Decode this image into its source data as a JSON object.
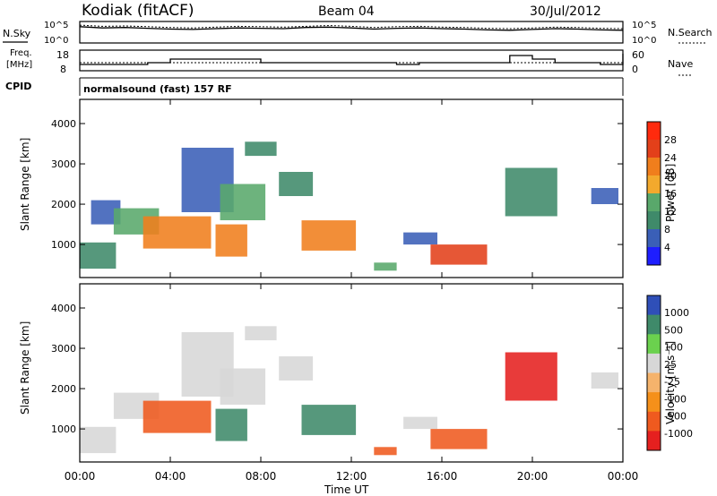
{
  "chart_data": [
    {
      "type": "header",
      "title": "Kodiak (fitACF)",
      "beam": "Beam 04",
      "date": "30/Jul/2012"
    },
    {
      "type": "line",
      "name": "noise-panel",
      "left_label": "N.Sky",
      "right_label": "N.Search",
      "left_ticks": [
        "10^5",
        "10^0"
      ],
      "right_ticks": [
        "10^5",
        "10^0"
      ],
      "series": [
        {
          "name": "N.Sky",
          "style": "solid",
          "x": [
            0,
            1,
            2,
            3,
            4,
            5,
            6,
            7,
            8,
            9,
            10,
            11,
            12,
            13,
            14,
            15,
            16,
            17,
            18,
            19,
            20,
            21,
            22,
            23,
            24
          ],
          "values": [
            3.9,
            3.6,
            3.7,
            3.5,
            3.3,
            3.2,
            3.4,
            3.6,
            3.5,
            3.4,
            3.7,
            3.8,
            3.6,
            3.3,
            3.5,
            3.6,
            3.4,
            3.3,
            3.1,
            3.0,
            3.2,
            3.4,
            3.3,
            3.1,
            3.0
          ]
        },
        {
          "name": "N.Search",
          "style": "dotted",
          "x": [
            0,
            1,
            2,
            3,
            4,
            5,
            6,
            7,
            8,
            9,
            10,
            11,
            12,
            13,
            14,
            15,
            16,
            17,
            18,
            19,
            20,
            21,
            22,
            23,
            24
          ],
          "values": [
            4.3,
            4.0,
            4.1,
            3.9,
            3.7,
            3.6,
            3.8,
            4.0,
            3.9,
            3.8,
            4.0,
            4.2,
            4.0,
            3.7,
            3.9,
            4.0,
            3.8,
            3.7,
            3.5,
            3.4,
            3.6,
            3.8,
            3.7,
            3.5,
            3.4
          ]
        }
      ]
    },
    {
      "type": "line",
      "name": "frequency-panel",
      "left_label_top": "Freq.",
      "left_label_bottom": "[MHz]",
      "right_label": "Nave",
      "left_ticks": [
        "18",
        "8"
      ],
      "right_ticks": [
        "60",
        "0"
      ],
      "series": [
        {
          "name": "Freq.",
          "unit": "MHz",
          "style": "step",
          "x": [
            0,
            1,
            2,
            3,
            4,
            5,
            6,
            7,
            8,
            9,
            10,
            11,
            12,
            13,
            14,
            15,
            16,
            17,
            18,
            19,
            20,
            21,
            22,
            23,
            24
          ],
          "values": [
            11,
            11,
            11,
            12,
            14,
            14,
            14,
            14,
            12,
            12,
            12,
            12,
            12,
            12,
            11,
            12,
            12,
            12,
            12,
            16,
            14,
            12,
            12,
            11,
            17
          ]
        },
        {
          "name": "Nave",
          "style": "dotted",
          "x": [
            0,
            24
          ],
          "values": [
            12,
            12
          ]
        }
      ]
    },
    {
      "type": "label",
      "name": "cpid",
      "label": "CPID",
      "text": "normalsound (fast) 157 RF"
    },
    {
      "type": "heatmap",
      "name": "power-panel",
      "ylabel": "Slant Range [km]",
      "yticks": [
        1000,
        2000,
        3000,
        4000
      ],
      "ylim": [
        180,
        4600
      ],
      "xlim": [
        0,
        24
      ],
      "colorbar": {
        "label": "Power [dB]",
        "ticks": [
          4,
          8,
          12,
          16,
          20,
          24,
          28
        ],
        "range": [
          0,
          32
        ]
      },
      "patches": [
        {
          "t": [
            0.0,
            1.6
          ],
          "r": [
            400,
            1050
          ],
          "v": 9
        },
        {
          "t": [
            0.5,
            1.8
          ],
          "r": [
            1500,
            2100
          ],
          "v": 7
        },
        {
          "t": [
            1.5,
            3.5
          ],
          "r": [
            1250,
            1900
          ],
          "v": 12
        },
        {
          "t": [
            2.8,
            5.8
          ],
          "r": [
            900,
            1700
          ],
          "v": 22
        },
        {
          "t": [
            4.5,
            6.8
          ],
          "r": [
            1800,
            3400
          ],
          "v": 6
        },
        {
          "t": [
            6.0,
            7.4
          ],
          "r": [
            700,
            1500
          ],
          "v": 20
        },
        {
          "t": [
            6.2,
            8.2
          ],
          "r": [
            1600,
            2500
          ],
          "v": 12
        },
        {
          "t": [
            7.3,
            8.7
          ],
          "r": [
            3200,
            3550
          ],
          "v": 9
        },
        {
          "t": [
            8.8,
            10.3
          ],
          "r": [
            2200,
            2800
          ],
          "v": 8
        },
        {
          "t": [
            9.8,
            12.2
          ],
          "r": [
            850,
            1600
          ],
          "v": 23
        },
        {
          "t": [
            13.0,
            14.0
          ],
          "r": [
            350,
            550
          ],
          "v": 15
        },
        {
          "t": [
            14.3,
            15.8
          ],
          "r": [
            1000,
            1300
          ],
          "v": 6
        },
        {
          "t": [
            15.5,
            18.0
          ],
          "r": [
            500,
            1000
          ],
          "v": 24
        },
        {
          "t": [
            18.8,
            21.1
          ],
          "r": [
            1700,
            2900
          ],
          "v": 10
        },
        {
          "t": [
            22.6,
            23.8
          ],
          "r": [
            2000,
            2400
          ],
          "v": 5
        }
      ]
    },
    {
      "type": "heatmap",
      "name": "velocity-panel",
      "ylabel": "Slant Range [km]",
      "yticks": [
        1000,
        2000,
        3000,
        4000
      ],
      "ylim": [
        180,
        4600
      ],
      "xlim": [
        0,
        24
      ],
      "xticks": [
        "00:00",
        "04:00",
        "08:00",
        "12:00",
        "16:00",
        "20:00",
        "00:00"
      ],
      "xlabel": "Time UT",
      "colorbar": {
        "label": "Velocity [m s⁻¹]",
        "ticks": [
          1000,
          500,
          100,
          25,
          -25,
          -100,
          -500,
          -1000
        ],
        "range": [
          -1000,
          1000
        ]
      },
      "patches": [
        {
          "t": [
            0.0,
            1.6
          ],
          "r": [
            400,
            1050
          ],
          "v": 0
        },
        {
          "t": [
            1.5,
            3.5
          ],
          "r": [
            1250,
            1900
          ],
          "v": 0
        },
        {
          "t": [
            2.8,
            5.8
          ],
          "r": [
            900,
            1700
          ],
          "v": -300
        },
        {
          "t": [
            4.5,
            6.8
          ],
          "r": [
            1800,
            3400
          ],
          "v": 0
        },
        {
          "t": [
            6.0,
            7.4
          ],
          "r": [
            700,
            1500
          ],
          "v": 200
        },
        {
          "t": [
            6.2,
            8.2
          ],
          "r": [
            1600,
            2500
          ],
          "v": 0
        },
        {
          "t": [
            7.3,
            8.7
          ],
          "r": [
            3200,
            3550
          ],
          "v": 0
        },
        {
          "t": [
            8.8,
            10.3
          ],
          "r": [
            2200,
            2800
          ],
          "v": 0
        },
        {
          "t": [
            9.8,
            12.2
          ],
          "r": [
            850,
            1600
          ],
          "v": 300
        },
        {
          "t": [
            13.0,
            14.0
          ],
          "r": [
            350,
            550
          ],
          "v": -300
        },
        {
          "t": [
            14.3,
            15.8
          ],
          "r": [
            1000,
            1300
          ],
          "v": 0
        },
        {
          "t": [
            15.5,
            18.0
          ],
          "r": [
            500,
            1000
          ],
          "v": -300
        },
        {
          "t": [
            18.8,
            21.1
          ],
          "r": [
            1700,
            2900
          ],
          "v": -700
        },
        {
          "t": [
            22.6,
            23.8
          ],
          "r": [
            2000,
            2400
          ],
          "v": 0
        }
      ]
    }
  ],
  "colors": {
    "power": [
      "#1e1eff",
      "#3a5fb7",
      "#3f8a6a",
      "#59a86b",
      "#f3a92d",
      "#f07e1c",
      "#e3401a",
      "#ff2a0d"
    ],
    "velocity": [
      "#e5201f",
      "#ef5a1f",
      "#f5901a",
      "#f5b36c",
      "#d7d7d7",
      "#6bd14e",
      "#3f8a6a",
      "#2f4fb8"
    ]
  }
}
